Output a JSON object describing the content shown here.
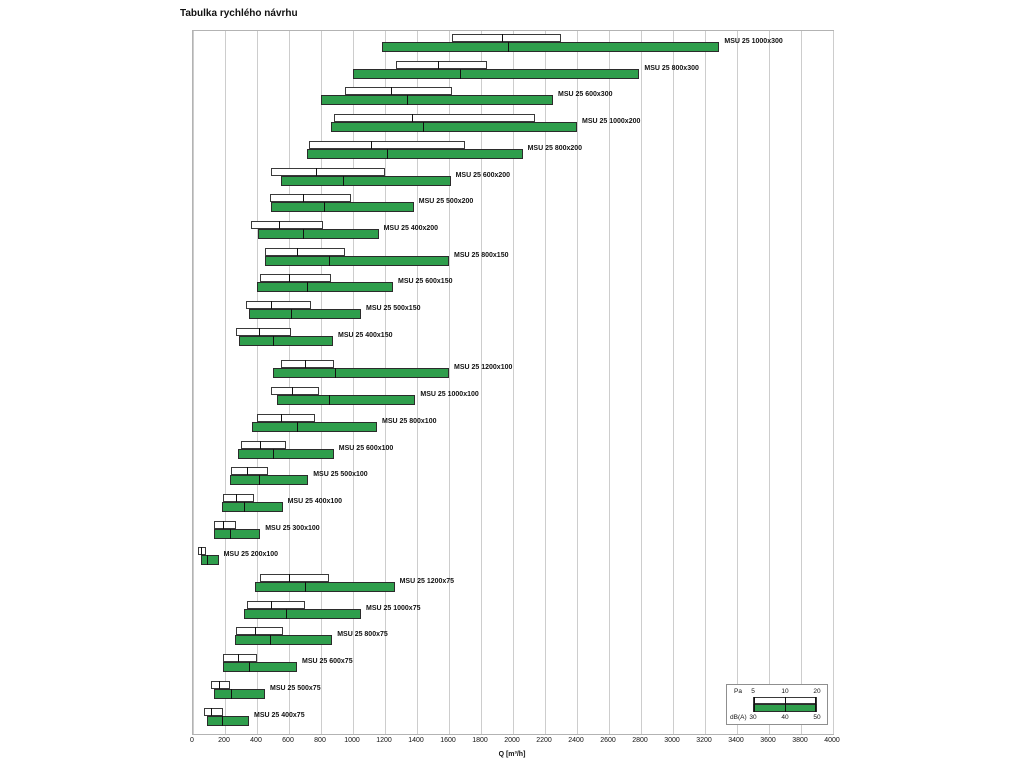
{
  "chart_data": {
    "type": "bar",
    "orientation": "horizontal-range",
    "title": "Tabulka rychlého návrhu",
    "xlabel": "Q [m³/h]",
    "x_min": 0,
    "x_max": 4000,
    "x_tick_step": 200,
    "x_ticks": [
      0,
      200,
      400,
      600,
      800,
      1000,
      1200,
      1400,
      1600,
      1800,
      2000,
      2200,
      2400,
      2600,
      2800,
      3000,
      3200,
      3400,
      3600,
      3800,
      4000
    ],
    "grid": true,
    "legend_position": "bottom-right",
    "colors": {
      "pa_bar_fill": "#ffffff",
      "db_bar_fill": "#2f9e4c",
      "bar_border": "#333333",
      "gridline": "#cdcdcd"
    },
    "legend": {
      "pa_label": "Pa",
      "pa_values": [
        "5",
        "10",
        "20"
      ],
      "db_label": "dB(A)",
      "db_values": [
        "30",
        "40",
        "50"
      ]
    },
    "series_note": "Each row has a white bar (flow range for pressure drop 5-10-20 Pa) above a green bar (flow range for noise 30-40-50 dB(A)); values in m3/h",
    "rows": [
      {
        "label": "MSU 25 1000x300",
        "pa_q": [
          1620,
          1930,
          2300
        ],
        "db_q": [
          1180,
          1970,
          3290
        ]
      },
      {
        "label": "MSU 25 800x300",
        "pa_q": [
          1270,
          1530,
          1840
        ],
        "db_q": [
          1000,
          1670,
          2790
        ]
      },
      {
        "label": "MSU 25 600x300",
        "pa_q": [
          950,
          1240,
          1620
        ],
        "db_q": [
          800,
          1340,
          2250
        ]
      },
      {
        "label": "MSU 25 1000x200",
        "pa_q": [
          880,
          1370,
          2140
        ],
        "db_q": [
          860,
          1440,
          2400
        ]
      },
      {
        "label": "MSU 25 800x200",
        "pa_q": [
          725,
          1110,
          1700
        ],
        "db_q": [
          710,
          1210,
          2060
        ]
      },
      {
        "label": "MSU 25 600x200",
        "pa_q": [
          490,
          770,
          1200
        ],
        "db_q": [
          550,
          940,
          1610
        ]
      },
      {
        "label": "MSU 25 500x200",
        "pa_q": [
          480,
          690,
          990
        ],
        "db_q": [
          490,
          820,
          1380
        ]
      },
      {
        "label": "MSU 25 400x200",
        "pa_q": [
          365,
          540,
          810
        ],
        "db_q": [
          405,
          690,
          1160
        ]
      },
      {
        "label": "MSU 25 800x150",
        "pa_q": [
          450,
          650,
          950
        ],
        "db_q": [
          450,
          850,
          1600
        ]
      },
      {
        "label": "MSU 25 600x150",
        "pa_q": [
          420,
          600,
          860
        ],
        "db_q": [
          400,
          710,
          1250
        ]
      },
      {
        "label": "MSU 25 500x150",
        "pa_q": [
          330,
          490,
          740
        ],
        "db_q": [
          350,
          610,
          1050
        ]
      },
      {
        "label": "MSU 25 400x150",
        "pa_q": [
          270,
          410,
          610
        ],
        "db_q": [
          290,
          500,
          875
        ]
      },
      {
        "label": "MSU 25 1200x100",
        "pa_q": [
          550,
          700,
          880
        ],
        "db_q": [
          500,
          890,
          1600
        ]
      },
      {
        "label": "MSU 25 1000x100",
        "pa_q": [
          490,
          620,
          790
        ],
        "db_q": [
          525,
          850,
          1390
        ]
      },
      {
        "label": "MSU 25 800x100",
        "pa_q": [
          400,
          550,
          760
        ],
        "db_q": [
          370,
          650,
          1150
        ]
      },
      {
        "label": "MSU 25 600x100",
        "pa_q": [
          300,
          420,
          580
        ],
        "db_q": [
          280,
          500,
          880
        ]
      },
      {
        "label": "MSU 25 500x100",
        "pa_q": [
          240,
          340,
          470
        ],
        "db_q": [
          230,
          410,
          720
        ]
      },
      {
        "label": "MSU 25 400x100",
        "pa_q": [
          190,
          270,
          380
        ],
        "db_q": [
          180,
          320,
          560
        ]
      },
      {
        "label": "MSU 25 300x100",
        "pa_q": [
          130,
          190,
          270
        ],
        "db_q": [
          130,
          230,
          420
        ]
      },
      {
        "label": "MSU 25 200x100",
        "pa_q": [
          30,
          50,
          80
        ],
        "db_q": [
          50,
          90,
          160
        ]
      },
      {
        "label": "MSU 25 1200x75",
        "pa_q": [
          420,
          600,
          850
        ],
        "db_q": [
          390,
          700,
          1260
        ]
      },
      {
        "label": "MSU 25 1000x75",
        "pa_q": [
          340,
          490,
          700
        ],
        "db_q": [
          320,
          580,
          1050
        ]
      },
      {
        "label": "MSU 25 800x75",
        "pa_q": [
          270,
          390,
          560
        ],
        "db_q": [
          260,
          480,
          870
        ]
      },
      {
        "label": "MSU 25 600x75",
        "pa_q": [
          190,
          280,
          400
        ],
        "db_q": [
          190,
          350,
          650
        ]
      },
      {
        "label": "MSU 25 500x75",
        "pa_q": [
          110,
          160,
          230
        ],
        "db_q": [
          130,
          240,
          450
        ]
      },
      {
        "label": "MSU 25 400x75",
        "pa_q": [
          70,
          115,
          190
        ],
        "db_q": [
          90,
          180,
          350
        ]
      }
    ]
  }
}
